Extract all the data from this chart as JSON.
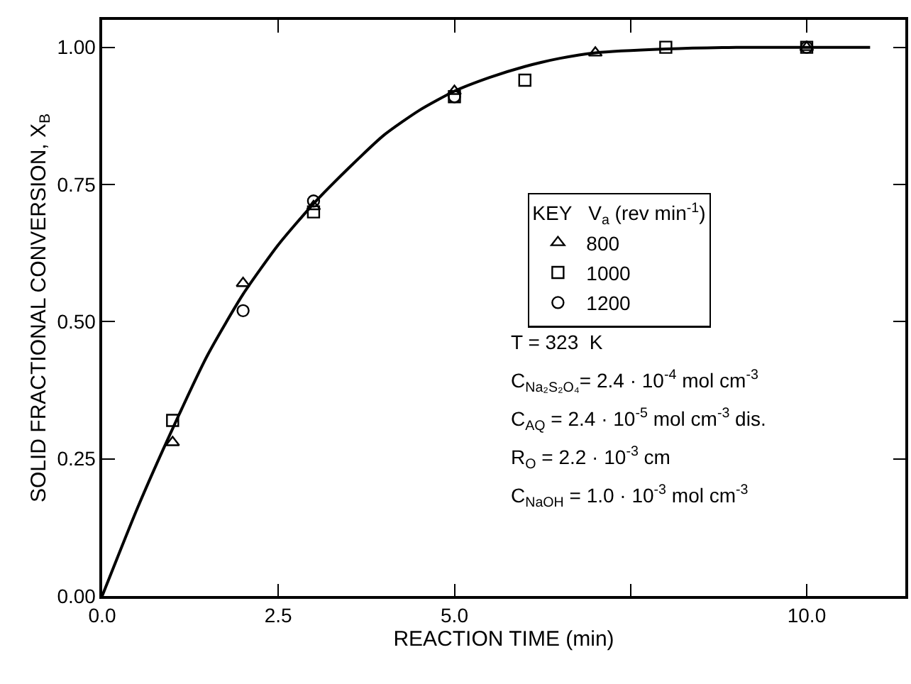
{
  "chart_data": {
    "type": "scatter",
    "xlabel": "REACTION TIME (min)",
    "ylabel": "SOLID FRACTIONAL CONVERSION, X$_{B}$",
    "legend_title": "KEY   V$_{a}$ (rev min$^{-1}$)",
    "xlim": [
      0,
      11.4
    ],
    "ylim": [
      0,
      1.05
    ],
    "xticks": [
      {
        "value": 0,
        "label": "0.0"
      },
      2.5,
      {
        "value": 5,
        "label": "5.0"
      },
      {
        "value": 7.5,
        "label": null
      },
      {
        "value": 10,
        "label": "10.0"
      }
    ],
    "yticks": [
      {
        "value": 0,
        "label": "0.00"
      },
      0.25,
      {
        "value": 0.5,
        "label": "0.50"
      },
      0.75,
      {
        "value": 1,
        "label": "1.00"
      }
    ],
    "grid": false,
    "legend": "right",
    "series": [
      {
        "name": "800",
        "color": "#000000",
        "marker": "triangle",
        "x": [
          1,
          2,
          3,
          5,
          7,
          10
        ],
        "values": [
          0.28,
          0.57,
          0.71,
          0.92,
          0.99,
          1.0
        ]
      },
      {
        "name": "1000",
        "color": "#000000",
        "marker": "square",
        "x": [
          1,
          3,
          5,
          6,
          8,
          10
        ],
        "values": [
          0.32,
          0.7,
          0.91,
          0.94,
          1.0,
          1.0
        ]
      },
      {
        "name": "1200",
        "color": "#000000",
        "marker": "circle",
        "x": [
          2,
          3,
          5,
          10
        ],
        "values": [
          0.52,
          0.72,
          0.91,
          1.0
        ]
      },
      {
        "type": "line",
        "color": "#000000",
        "line_style": "solid",
        "x": [
          0,
          0.5,
          1,
          1.5,
          2,
          2.5,
          3,
          3.5,
          4,
          4.5,
          5,
          5.5,
          6,
          6.5,
          7,
          8,
          9,
          10.9
        ],
        "values": [
          0,
          0.16,
          0.305,
          0.44,
          0.55,
          0.64,
          0.715,
          0.78,
          0.84,
          0.885,
          0.92,
          0.945,
          0.965,
          0.98,
          0.99,
          0.997,
          1.0,
          1.0
        ]
      }
    ],
    "annotations": [
      "T = 323  K",
      "C$_{Na₂S₂O₄}$= 2.4 · 10$^{-4}$ mol cm$^{-3}$",
      "C$_{AQ}$ = 2.4 · 10$^{-5}$ mol cm$^{-3}$ dis.",
      "R$_{O}$ = 2.2 · 10$^{-3}$ cm",
      "C$_{NaOH}$ = 1.0 · 10$^{-3}$ mol cm$^{-3}$"
    ]
  }
}
